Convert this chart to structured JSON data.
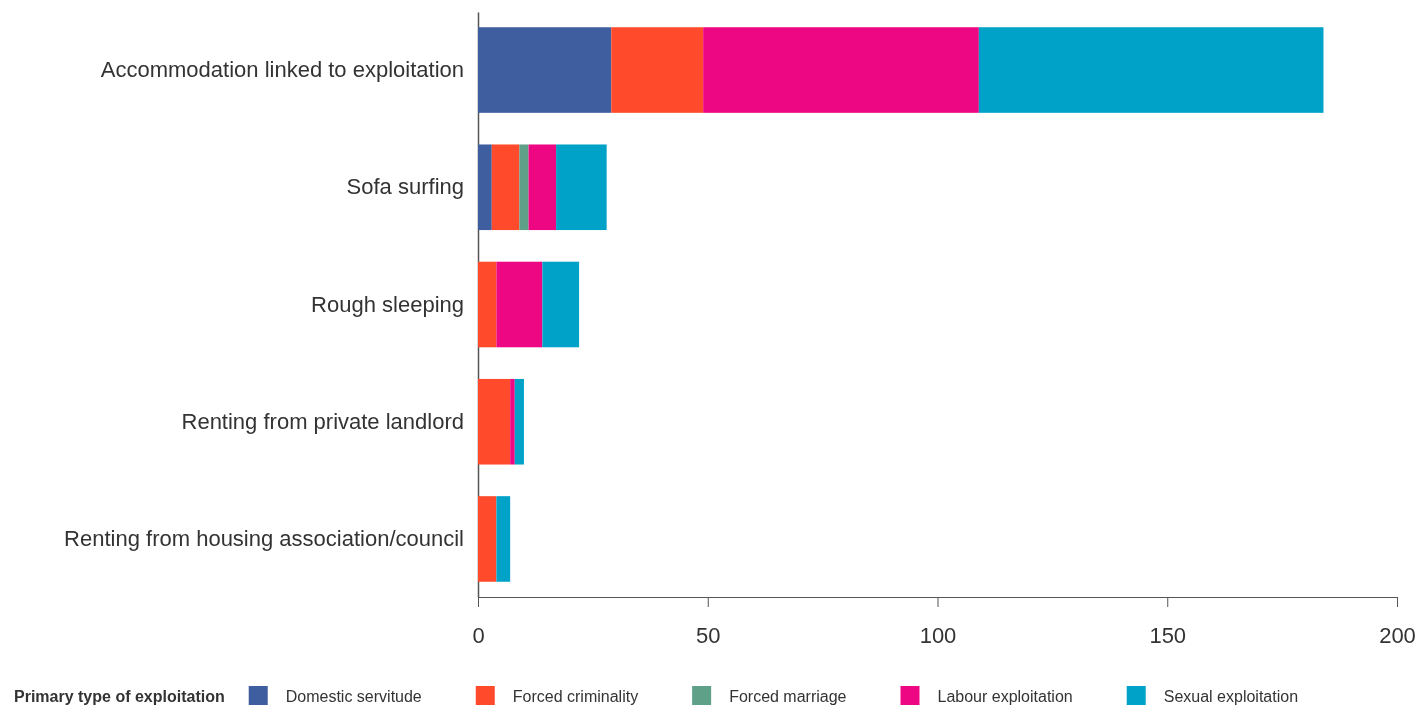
{
  "chart_data": {
    "type": "bar",
    "orientation": "horizontal",
    "stacked": true,
    "categories": [
      "Accommodation linked to exploitation",
      "Sofa surfing",
      "Rough sleeping",
      "Renting from private landlord",
      "Renting from housing association/council"
    ],
    "series": [
      {
        "name": "Domestic servitude",
        "color": "#3f5ea0",
        "values": [
          29,
          3,
          0,
          0,
          0
        ]
      },
      {
        "name": "Forced criminality",
        "color": "#ff4b2b",
        "values": [
          20,
          6,
          4,
          7,
          4
        ]
      },
      {
        "name": "Forced marriage",
        "color": "#5fa089",
        "values": [
          0,
          2,
          0,
          0,
          0
        ]
      },
      {
        "name": "Labour exploitation",
        "color": "#ee0783",
        "values": [
          60,
          6,
          10,
          1,
          0
        ]
      },
      {
        "name": "Sexual exploitation",
        "color": "#00a2c7",
        "values": [
          75,
          11,
          8,
          2,
          3
        ]
      }
    ],
    "xlim": [
      0,
      200
    ],
    "xticks": [
      0,
      50,
      100,
      150,
      200
    ],
    "legend_title": "Primary type of exploitation",
    "legend": "bottom"
  }
}
